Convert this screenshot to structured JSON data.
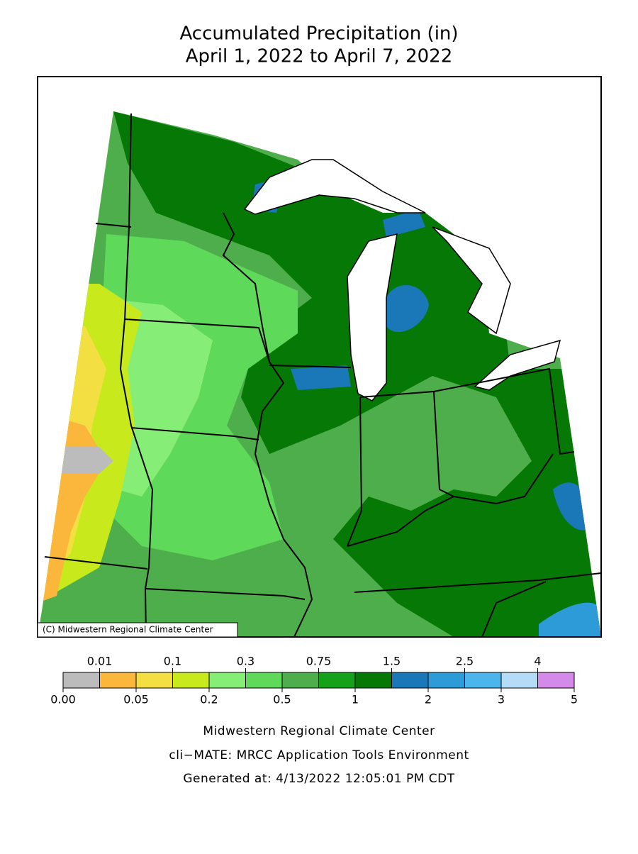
{
  "title": [
    "Accumulated Precipitation (in)",
    "April 1, 2022 to April 7, 2022"
  ],
  "map": {
    "credit": "(C) Midwestern Regional Climate Center"
  },
  "legend": {
    "ticks": [
      {
        "value": 0,
        "label": "0.00"
      },
      0.01,
      0.05,
      0.1,
      0.2,
      0.3,
      0.5,
      0.75,
      1,
      1.5,
      2,
      2.5,
      3,
      4,
      5
    ],
    "colors": [
      "#bcbcbc",
      "#fbb73c",
      "#f3df42",
      "#c8ea1c",
      "#86ee76",
      "#5fd95a",
      "#4fae4c",
      "#16a11a",
      "#067806",
      "#1b78b8",
      "#2d9bd8",
      "#4bb5ec",
      "#b5dcf7",
      "#d38ae8"
    ]
  },
  "footer": [
    "Midwestern Regional Climate Center",
    "cli−MATE: MRCC Application Tools Environment",
    "Generated at: 4/13/2022 12:05:01 PM CDT"
  ]
}
